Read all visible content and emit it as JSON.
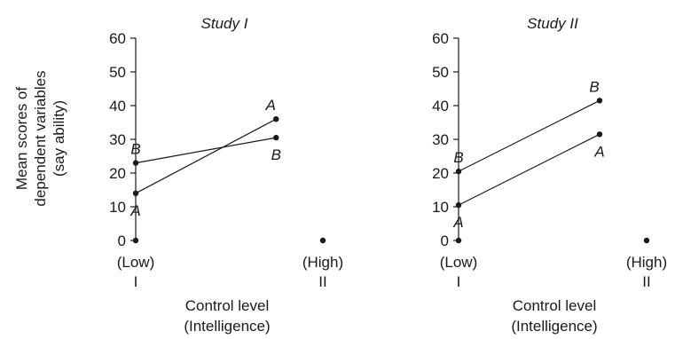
{
  "chart_data": [
    {
      "type": "line",
      "title": "Study I",
      "ylabel": [
        "Mean scores of",
        "dependent variables",
        "(say ability)"
      ],
      "xlabel": [
        "Control level",
        "(Intelligence)"
      ],
      "ylim": [
        0,
        60
      ],
      "yticks": [
        "0",
        "10",
        "20",
        "30",
        "40",
        "50",
        "60"
      ],
      "xticks": [
        {
          "lines": [
            "(Low)",
            "I"
          ]
        },
        {
          "lines": [
            "(High)",
            "II"
          ]
        }
      ],
      "series": [
        {
          "name": "A",
          "points": [
            {
              "x": 1,
              "y": 14,
              "label": "A"
            },
            {
              "x": 1.75,
              "y": 36,
              "label": "A"
            }
          ]
        },
        {
          "name": "B",
          "points": [
            {
              "x": 1,
              "y": 23,
              "label": "B"
            },
            {
              "x": 1.75,
              "y": 30.5,
              "label": "B"
            }
          ]
        }
      ],
      "baseline_points": [
        {
          "x": 1,
          "y": 0
        },
        {
          "x": 2,
          "y": 0
        }
      ]
    },
    {
      "type": "line",
      "title": "Study II",
      "xlabel": [
        "Control level",
        "(Intelligence)"
      ],
      "ylim": [
        0,
        60
      ],
      "yticks": [
        "0",
        "10",
        "20",
        "30",
        "40",
        "50",
        "60"
      ],
      "xticks": [
        {
          "lines": [
            "(Low)",
            "I"
          ]
        },
        {
          "lines": [
            "(High)",
            "II"
          ]
        }
      ],
      "series": [
        {
          "name": "A",
          "points": [
            {
              "x": 1,
              "y": 10.5,
              "label": "A"
            },
            {
              "x": 1.75,
              "y": 31.5,
              "label": "A"
            }
          ]
        },
        {
          "name": "B",
          "points": [
            {
              "x": 1,
              "y": 20.5,
              "label": "B"
            },
            {
              "x": 1.75,
              "y": 41.5,
              "label": "B"
            }
          ]
        }
      ],
      "baseline_points": [
        {
          "x": 1,
          "y": 0
        },
        {
          "x": 2,
          "y": 0
        }
      ]
    }
  ]
}
